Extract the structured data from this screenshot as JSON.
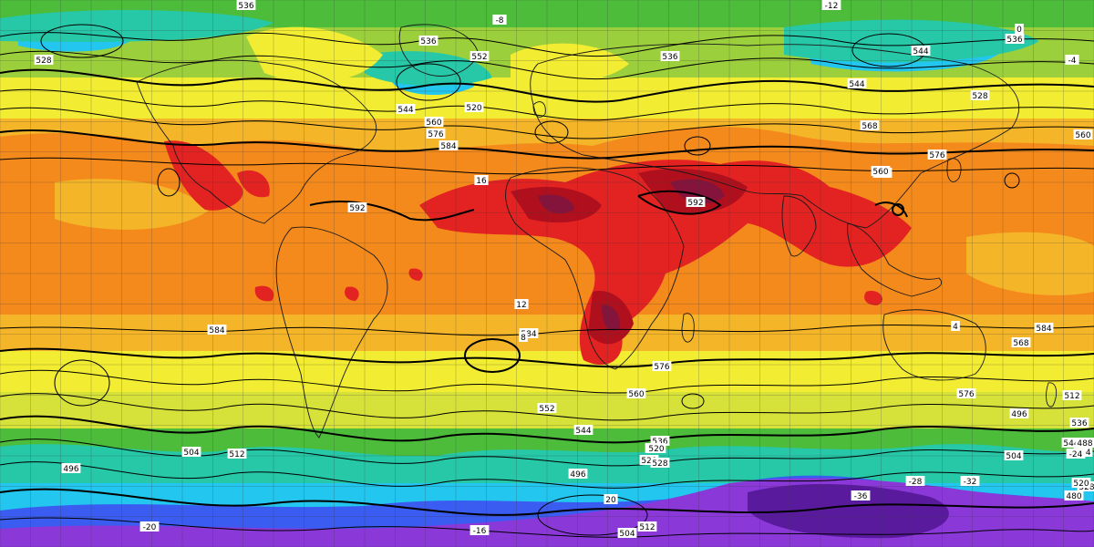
{
  "map": {
    "projection": "equirectangular",
    "grid_step_deg": 10,
    "fill_colors": {
      "deep_purple": "#5a1a9e",
      "purple": "#8a38d8",
      "blue": "#3a5cf0",
      "cyan": "#22c6ee",
      "teal": "#26c8a8",
      "green": "#4cbc3a",
      "lightgreen": "#9ccf3c",
      "yellowgreen": "#d6e23a",
      "yellow": "#f2ec32",
      "lightorange": "#f4b628",
      "orange": "#f58a1c",
      "darkorange": "#ef6a12",
      "red": "#e32222",
      "darkred": "#b0101e",
      "maroon": "#84143c"
    },
    "contour_color": "#000000",
    "coast_color": "#1a1a1a"
  },
  "height_labels": [
    "536",
    "536",
    "528",
    "552",
    "536",
    "544",
    "544",
    "560",
    "576",
    "584",
    "592",
    "592",
    "584",
    "576",
    "568",
    "560",
    "544",
    "528",
    "520",
    "512",
    "504",
    "496",
    "488",
    "480",
    "496",
    "504",
    "512",
    "520",
    "528",
    "536",
    "544",
    "552",
    "560",
    "576",
    "584",
    "584",
    "584",
    "576",
    "568",
    "560",
    "544",
    "536",
    "528",
    "520",
    "512",
    "504",
    "496",
    "504",
    "512",
    "520",
    "528",
    "536"
  ],
  "temp_labels": [
    "-12",
    "-8",
    "-4",
    "0",
    "4",
    "8",
    "12",
    "16",
    "20",
    "-16",
    "-20",
    "-24",
    "-28",
    "-32",
    "-36"
  ]
}
